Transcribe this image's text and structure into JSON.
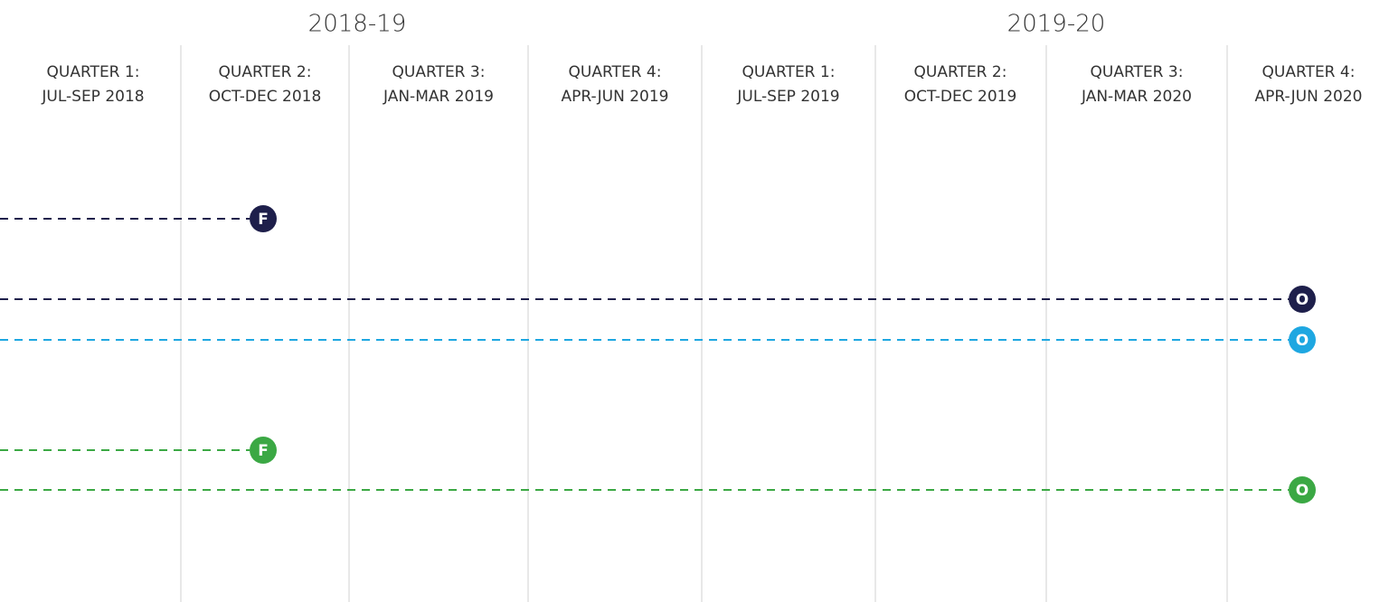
{
  "years": [
    "2018-19",
    "2019-20"
  ],
  "quarters": [
    [
      "QUARTER 1:",
      "JUL-SEP 2018"
    ],
    [
      "QUARTER 2:",
      "OCT-DEC 2018"
    ],
    [
      "QUARTER 3:",
      "JAN-MAR 2019"
    ],
    [
      "QUARTER 4:",
      "APR-JUN 2019"
    ],
    [
      "QUARTER 1:",
      "JUL-SEP 2019"
    ],
    [
      "QUARTER 2:",
      "OCT-DEC 2019"
    ],
    [
      "QUARTER 3:",
      "JAN-MAR 2020"
    ],
    [
      "QUARTER 4:",
      "APR-JUN 2020"
    ]
  ],
  "tracks": [
    {
      "marker": "F",
      "color": "#1e1f4b"
    },
    {
      "marker": "O",
      "color": "#1e1f4b"
    },
    {
      "marker": "O",
      "color": "#1ea7e1"
    },
    {
      "marker": "F",
      "color": "#3ba844"
    },
    {
      "marker": "O",
      "color": "#3ba844"
    }
  ]
}
